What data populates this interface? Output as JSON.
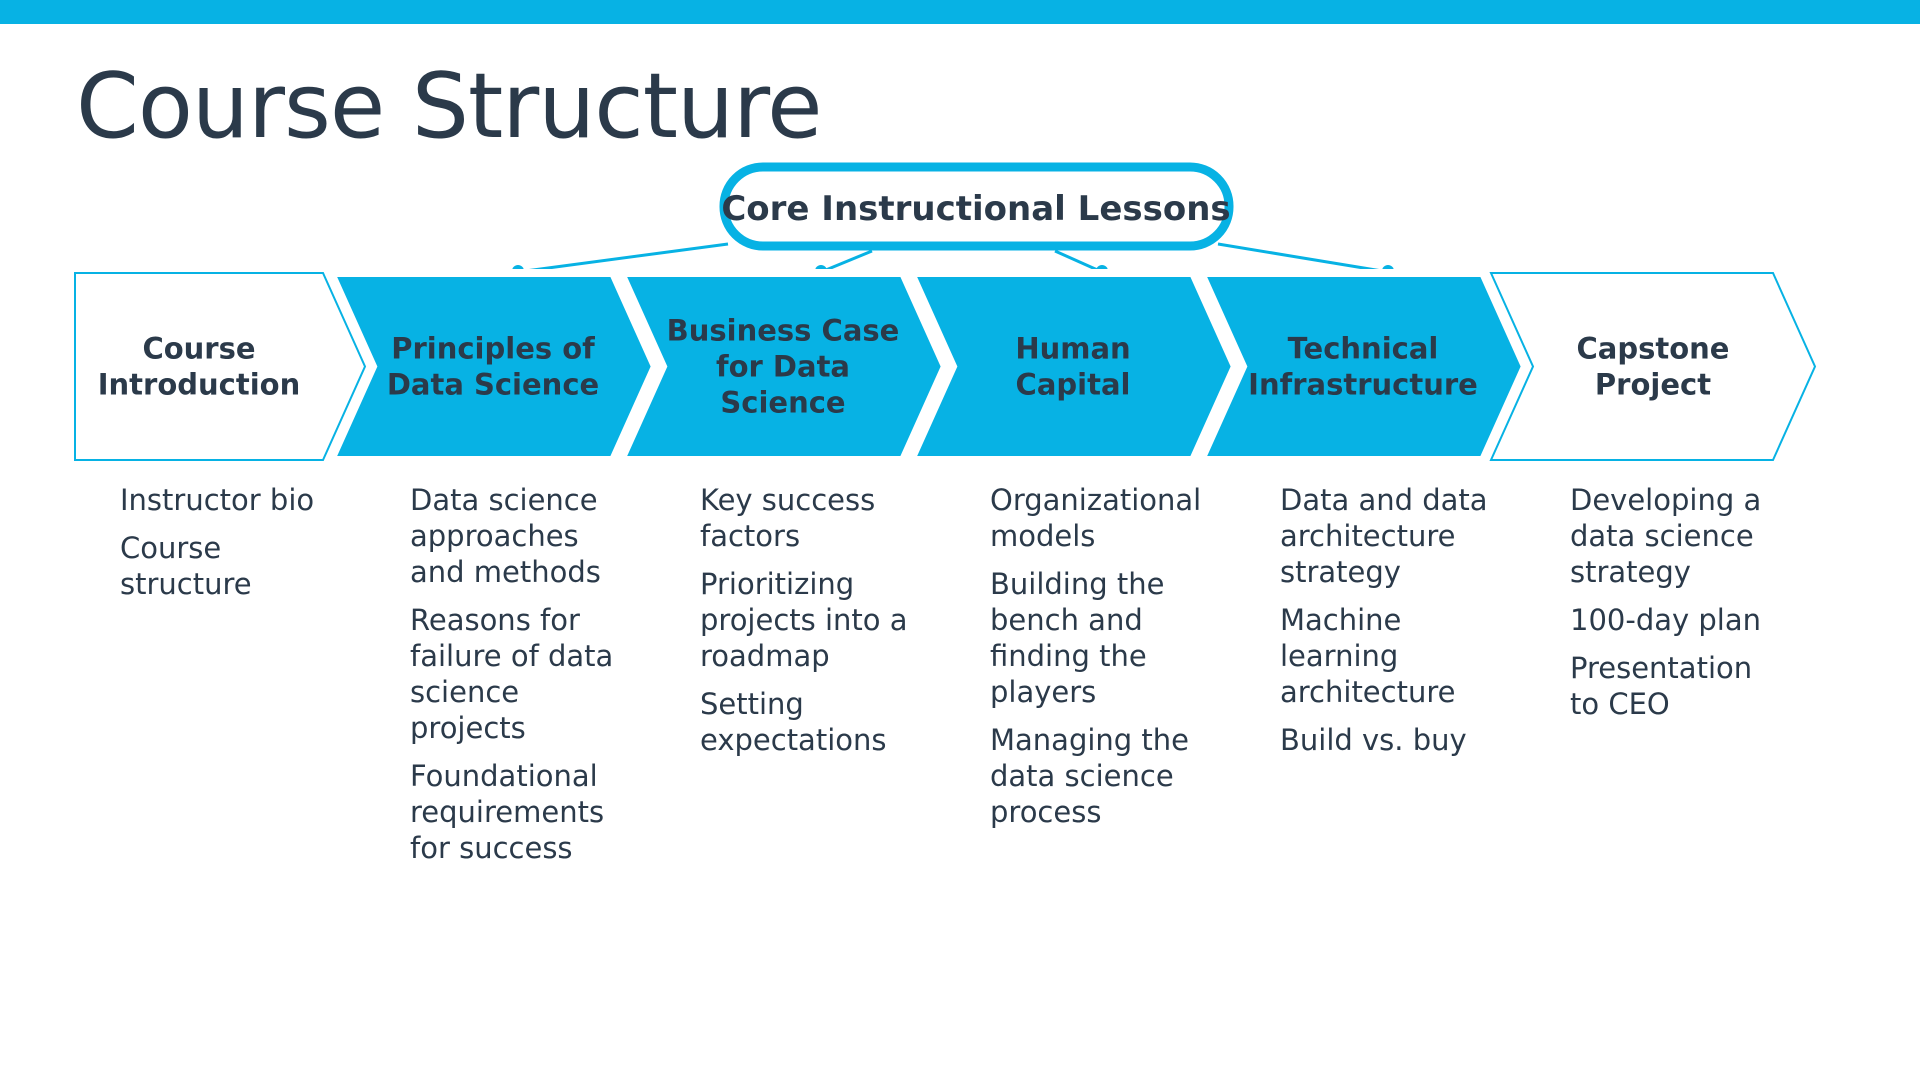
{
  "page": {
    "title": "Course Structure",
    "accent_color": "#07b2e4",
    "text_color": "#2b3a4a"
  },
  "header": {
    "label": "Core Instructional Lessons"
  },
  "stages": [
    {
      "title_lines": [
        "Course",
        "Introduction"
      ],
      "style": "outline",
      "items": [
        "Instructor bio",
        "Course structure"
      ]
    },
    {
      "title_lines": [
        "Principles of",
        "Data Science"
      ],
      "style": "filled",
      "items": [
        "Data science approaches and methods",
        "Reasons for failure of data science projects",
        "Foundational requirements for success"
      ]
    },
    {
      "title_lines": [
        "Business Case",
        "for Data",
        "Science"
      ],
      "style": "filled",
      "items": [
        "Key success factors",
        "Prioritizing projects into a roadmap",
        "Setting expectations"
      ]
    },
    {
      "title_lines": [
        "Human",
        "Capital"
      ],
      "style": "filled",
      "items": [
        "Organizational models",
        "Building the bench and finding the players",
        "Managing the data science process"
      ]
    },
    {
      "title_lines": [
        "Technical",
        "Infrastructure"
      ],
      "style": "filled",
      "items": [
        "Data and data architecture strategy",
        "Machine learning architecture",
        "Build vs. buy"
      ]
    },
    {
      "title_lines": [
        "Capstone",
        "Project"
      ],
      "style": "outline",
      "items": [
        "Developing a data science strategy",
        "100-day plan",
        "Presentation to CEO"
      ]
    }
  ]
}
